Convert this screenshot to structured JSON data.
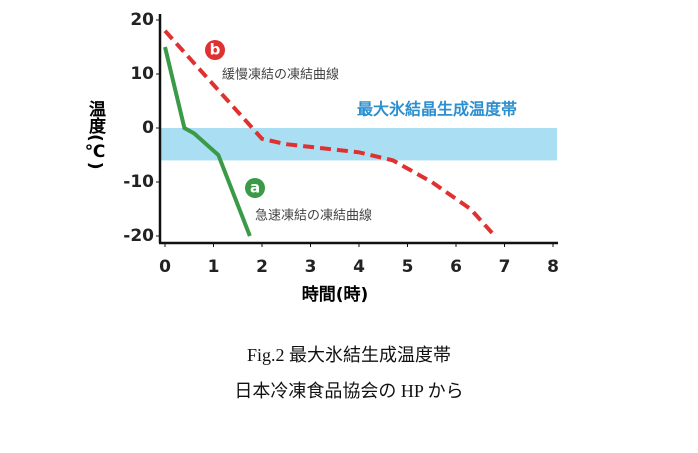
{
  "chart_data": {
    "type": "line",
    "ylabel": "温度(℃)",
    "xlabel": "時間(時)",
    "xlim": [
      0,
      8
    ],
    "xticks": [
      0,
      1,
      2,
      3,
      4,
      5,
      6,
      7,
      8
    ],
    "ylim": [
      -20,
      20
    ],
    "yticks": [
      -20,
      -10,
      0,
      10,
      20
    ],
    "band": {
      "label": "最大氷結晶生成温度帯",
      "ymin": -6,
      "ymax": 0,
      "color": "#a9def3"
    },
    "series": [
      {
        "name": "急速凍結の凍結曲線",
        "badge": "a",
        "color": "#3a9a48",
        "dash": false,
        "x": [
          0,
          0.4,
          0.6,
          1.1,
          1.75
        ],
        "values": [
          15,
          0,
          -1,
          -5,
          -20
        ]
      },
      {
        "name": "緩慢凍結の凍結曲線",
        "badge": "b",
        "color": "#e03030",
        "dash": true,
        "x": [
          0,
          2,
          2.5,
          4,
          4.7,
          5.5,
          6.3,
          6.8
        ],
        "values": [
          18,
          -2,
          -3,
          -4.5,
          -6,
          -10,
          -15,
          -20
        ]
      }
    ],
    "caption": [
      "Fig.2  最大氷結生成温度帯",
      "日本冷凍食品協会の HP から"
    ]
  }
}
